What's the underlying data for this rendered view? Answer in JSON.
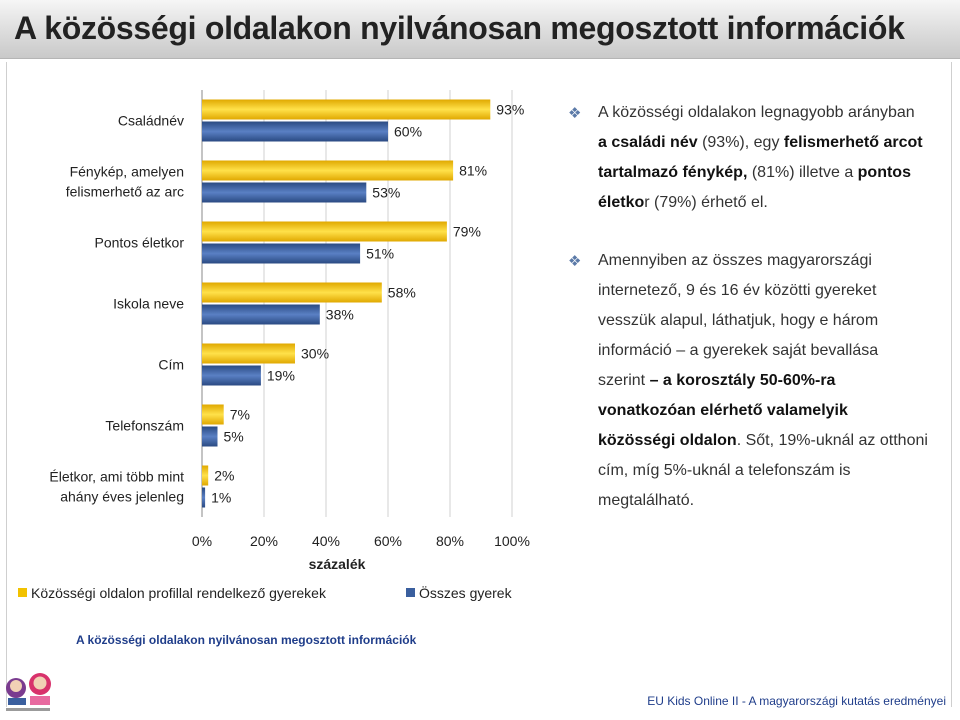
{
  "slide": {
    "title": "A közösségi oldalakon nyilvánosan megosztott információk",
    "caption": "A közösségi oldalakon nyilvánosan megosztott információk",
    "footer": "EU Kids Online II - A magyarországi kutatás eredményei",
    "colors": {
      "series1": "#f2c200",
      "series2": "#3a5f9e",
      "bullet": "#5b7aa8",
      "caption": "#1f3d8a"
    },
    "bullets": [
      [
        {
          "t": "A közösségi oldalakon legnagyobb arányban ",
          "b": false
        },
        {
          "t": "a családi név",
          "b": true
        },
        {
          "t": " (93%), egy ",
          "b": false
        },
        {
          "t": "felismerhető arcot tartalmazó fénykép,",
          "b": true
        },
        {
          "t": " (81%) illetve a ",
          "b": false
        },
        {
          "t": "pontos életko",
          "b": true
        },
        {
          "t": "r (79%) érhető el.",
          "b": false
        }
      ],
      [
        {
          "t": "Amennyiben az összes magyarországi internetező, 9 és 16 év közötti gyereket vesszük alapul, láthatjuk, hogy e három információ – a gyerekek saját bevallása szerint ",
          "b": false
        },
        {
          "t": "– a korosztály 50-60%-ra vonatkozóan elérhető valamelyik közösségi oldalon",
          "b": true
        },
        {
          "t": ". Sőt, 19%-uknál az otthoni cím, míg 5%-uknál a telefonszám is megtalálható.",
          "b": false
        }
      ]
    ]
  },
  "chart_data": {
    "type": "bar",
    "orientation": "horizontal",
    "categories": [
      [
        "Családnév"
      ],
      [
        "Fénykép, amelyen",
        "felismerhető az arc"
      ],
      [
        "Pontos életkor"
      ],
      [
        "Iskola neve"
      ],
      [
        "Cím"
      ],
      [
        "Telefonszám"
      ],
      [
        "Életkor, ami több mint",
        "ahány éves jelenleg"
      ]
    ],
    "series": [
      {
        "name": "Közösségi oldalon profillal rendelkező gyerekek",
        "values": [
          93,
          81,
          79,
          58,
          30,
          7,
          2
        ],
        "color": "#f2c200"
      },
      {
        "name": "Összes gyerek",
        "values": [
          60,
          53,
          51,
          38,
          19,
          5,
          1
        ],
        "color": "#3a5f9e"
      }
    ],
    "xlabel": "százalék",
    "ylabel": "",
    "xlim": [
      0,
      100
    ],
    "xticks": [
      "0%",
      "20%",
      "40%",
      "60%",
      "80%",
      "100%"
    ],
    "value_suffix": "%",
    "grid": true,
    "legend": "bottom"
  }
}
